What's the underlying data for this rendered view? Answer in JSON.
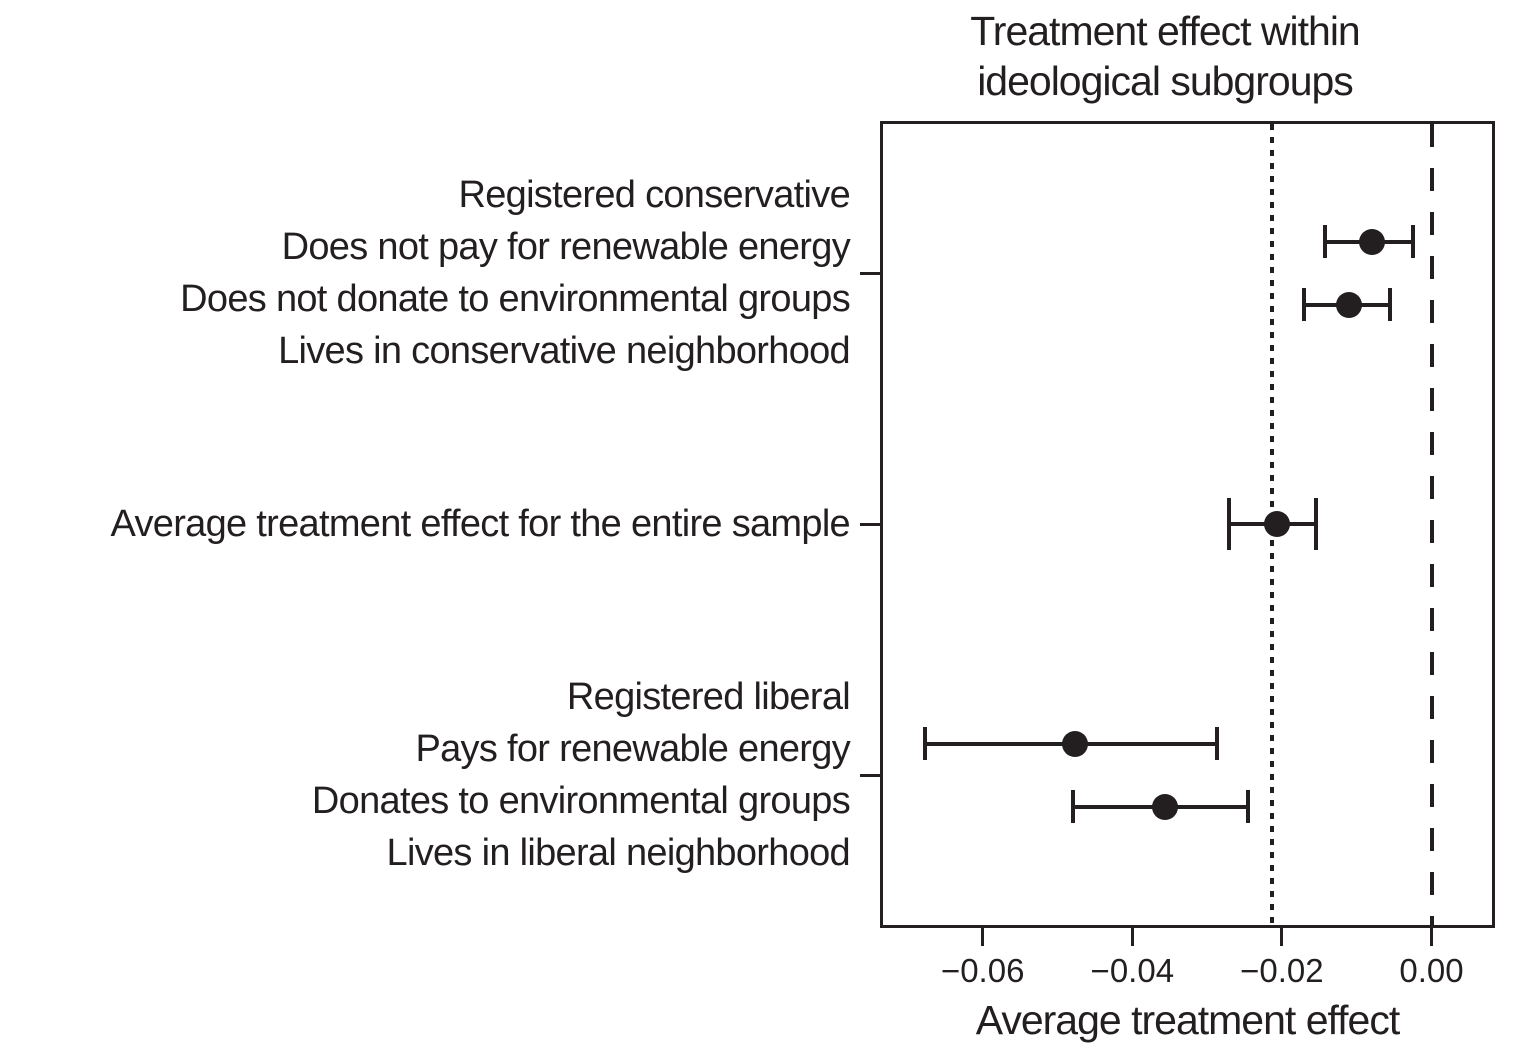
{
  "title": {
    "line1": "Treatment effect within",
    "line2": "ideological subgroups"
  },
  "x_axis": {
    "label": "Average treatment effect",
    "tick_labels": [
      "−0.06",
      "−0.04",
      "−0.02",
      "0.00"
    ],
    "tick_values": [
      -0.06,
      -0.04,
      -0.02,
      0
    ]
  },
  "colors": {
    "ink": "#231f20",
    "background": "#ffffff"
  },
  "chart_data": {
    "type": "scatter",
    "variant": "dot-and-whisker forest plot",
    "title": "Treatment effect within ideological subgroups",
    "xlabel": "Average treatment effect",
    "xlim": [
      -0.0737,
      0.0085
    ],
    "grid": false,
    "reference_lines": [
      {
        "style": "dotted",
        "value": -0.0213
      },
      {
        "style": "dashed",
        "value": 0
      }
    ],
    "groups": [
      {
        "label_lines": [
          "Registered conservative",
          "Does not pay for renewable energy",
          "Does not donate to environmental groups",
          "Lives in conservative neighborhood"
        ],
        "points": [
          {
            "estimate": -0.008,
            "ci_low": -0.0143,
            "ci_high": -0.0025
          },
          {
            "estimate": -0.011,
            "ci_low": -0.0171,
            "ci_high": -0.0056
          }
        ]
      },
      {
        "label_lines": [
          "Average treatment effect for the entire sample"
        ],
        "points": [
          {
            "estimate": -0.0207,
            "ci_low": -0.0271,
            "ci_high": -0.0154
          }
        ]
      },
      {
        "label_lines": [
          "Registered liberal",
          "Pays for renewable energy",
          "Donates to environmental groups",
          "Lives in liberal neighborhood"
        ],
        "points": [
          {
            "estimate": -0.0477,
            "ci_low": -0.0677,
            "ci_high": -0.0287
          },
          {
            "estimate": -0.0356,
            "ci_low": -0.0479,
            "ci_high": -0.0245
          }
        ]
      }
    ]
  }
}
